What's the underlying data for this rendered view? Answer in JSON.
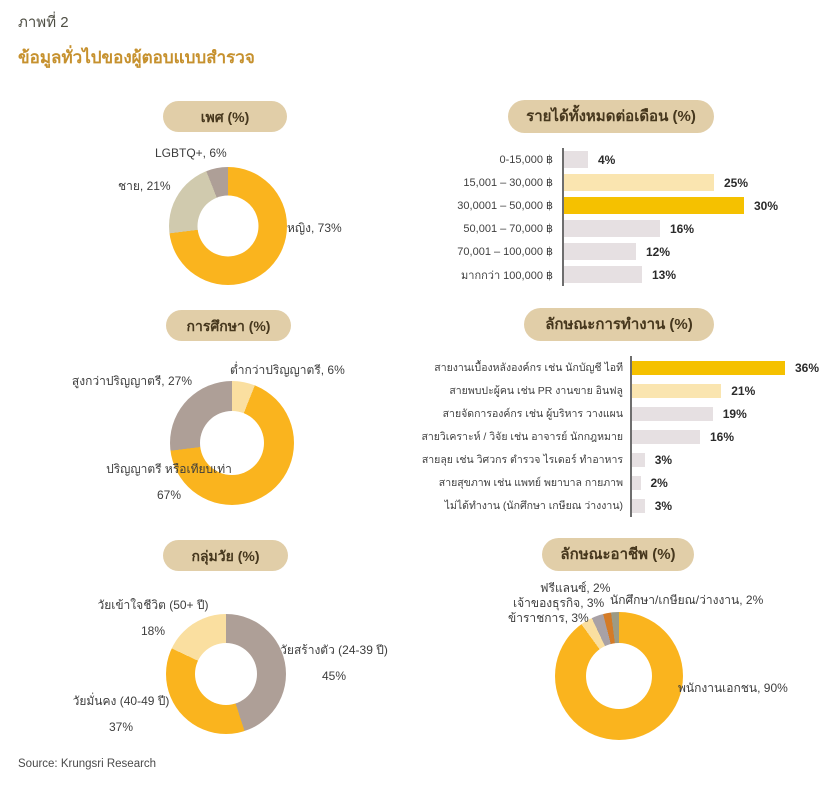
{
  "header": {
    "figure_label": "ภาพที่ 2",
    "title": "ข้อมูลทั่วไปของผู้ตอบแบบสำรวจ"
  },
  "footer": {
    "source": "Source: Krungsri Research"
  },
  "colors": {
    "accent_gold": "#FAB41E",
    "bar_gold": "#F5C100",
    "cream": "#FADFA0",
    "cream_bar": "#FAE5B0",
    "beige": "#D0CAAE",
    "mauve": "#AE9F97",
    "gray_mauve": "#A8A1A6",
    "orange": "#D47B27",
    "olive": "#9C9B85",
    "gray_bar": "#E6E0E2",
    "pill_bg": "#E1CEA8",
    "pill_text": "#46371D",
    "title_gold": "#C6912E"
  },
  "chart_data": [
    {
      "id": "gender",
      "type": "pie",
      "title": "เพศ (%)",
      "legend_position": "none",
      "segments": [
        {
          "label": "หญิง",
          "value": 73,
          "color": "#FAB41E",
          "label_text": "หญิง, 73%"
        },
        {
          "label": "ชาย",
          "value": 21,
          "color": "#D0CAAE",
          "label_text": "ชาย, 21%"
        },
        {
          "label": "LGBTQ+",
          "value": 6,
          "color": "#AE9F97",
          "label_text": "LGBTQ+, 6%"
        }
      ]
    },
    {
      "id": "income",
      "type": "bar",
      "title": "รายได้ทั้งหมดต่อเดือน (%)",
      "categories": [
        "0-15,000 ฿",
        "15,001 – 30,000 ฿",
        "30,0001 – 50,000 ฿",
        "50,001 – 70,000 ฿",
        "70,001 – 100,000 ฿",
        "มากกว่า 100,000 ฿"
      ],
      "values": [
        4,
        25,
        30,
        16,
        12,
        13
      ],
      "value_labels": [
        "4%",
        "25%",
        "30%",
        "16%",
        "12%",
        "13%"
      ],
      "bar_colors": [
        "#E6E0E2",
        "#FAE5B0",
        "#F5C100",
        "#E6E0E2",
        "#E6E0E2",
        "#E6E0E2"
      ],
      "xlim": [
        0,
        36
      ],
      "grid": false
    },
    {
      "id": "education",
      "type": "pie",
      "title": "การศึกษา (%)",
      "legend_position": "none",
      "segments": [
        {
          "label": "ต่ำกว่าปริญญาตรี",
          "value": 6,
          "color": "#FADFA0",
          "label_text": "ต่ำกว่าปริญญาตรี, 6%"
        },
        {
          "label": "ปริญญาตรี หรือเทียบเท่า",
          "value": 67,
          "color": "#FAB41E",
          "label_text": "ปริญญาตรี หรือเทียบเท่า",
          "label_text2": "67%"
        },
        {
          "label": "สูงกว่าปริญญาตรี",
          "value": 27,
          "color": "#AE9F97",
          "label_text": "สูงกว่าปริญญาตรี, 27%"
        }
      ]
    },
    {
      "id": "worktype",
      "type": "bar",
      "title": "ลักษณะการทำงาน (%)",
      "categories": [
        "สายงานเบื้องหลังองค์กร เช่น นักบัญชี ไอที",
        "สายพบปะผู้คน เช่น PR งานขาย อินฟลู",
        "สายจัดการองค์กร เช่น ผู้บริหาร วางแผน",
        "สายวิเคราะห์ / วิจัย เช่น อาจารย์ นักกฎหมาย",
        "สายลุย เช่น วิศวกร ตำรวจ ไรเดอร์ ทำอาหาร",
        "สายสุขภาพ เช่น แพทย์ พยาบาล กายภาพ",
        "ไม่ได้ทำงาน (นักศึกษา เกษียณ ว่างงาน)"
      ],
      "values": [
        36,
        21,
        19,
        16,
        3,
        2,
        3
      ],
      "value_labels": [
        "36%",
        "21%",
        "19%",
        "16%",
        "3%",
        "2%",
        "3%"
      ],
      "bar_colors": [
        "#F5C100",
        "#FAE5B0",
        "#E6E0E2",
        "#E6E0E2",
        "#E6E0E2",
        "#E6E0E2",
        "#E6E0E2"
      ],
      "xlim": [
        0,
        42
      ],
      "grid": false
    },
    {
      "id": "age",
      "type": "pie",
      "title": "กลุ่มวัย (%)",
      "legend_position": "none",
      "segments": [
        {
          "label": "วัยสร้างตัว (24-39 ปี)",
          "value": 45,
          "color": "#AE9F97",
          "label_text": "วัยสร้างตัว (24-39 ปี)",
          "label_text2": "45%"
        },
        {
          "label": "วัยมั่นคง (40-49 ปี)",
          "value": 37,
          "color": "#FAB41E",
          "label_text": "วัยมั่นคง (40-49 ปี)",
          "label_text2": "37%"
        },
        {
          "label": "วัยเข้าใจชีวิต (50+ ปี)",
          "value": 18,
          "color": "#FADFA0",
          "label_text": "วัยเข้าใจชีวิต (50+ ปี)",
          "label_text2": "18%"
        }
      ]
    },
    {
      "id": "occupation",
      "type": "pie",
      "title": "ลักษณะอาชีพ (%)",
      "legend_position": "none",
      "segments": [
        {
          "label": "พนักงานเอกชน",
          "value": 90,
          "color": "#FAB41E",
          "label_text": "พนักงานเอกชน, 90%"
        },
        {
          "label": "ข้าราชการ",
          "value": 3,
          "color": "#FADFA0",
          "label_text": "ข้าราชการ, 3%"
        },
        {
          "label": "เจ้าของธุรกิจ",
          "value": 3,
          "color": "#A8A1A6",
          "label_text": "เจ้าของธุรกิจ, 3%"
        },
        {
          "label": "ฟรีแลนซ์",
          "value": 2,
          "color": "#D47B27",
          "label_text": "ฟรีแลนซ์, 2%"
        },
        {
          "label": "นักศึกษา/เกษียณ/ว่างงาน",
          "value": 2,
          "color": "#9C9B85",
          "label_text": "นักศึกษา/เกษียณ/ว่างงาน, 2%"
        }
      ]
    }
  ]
}
